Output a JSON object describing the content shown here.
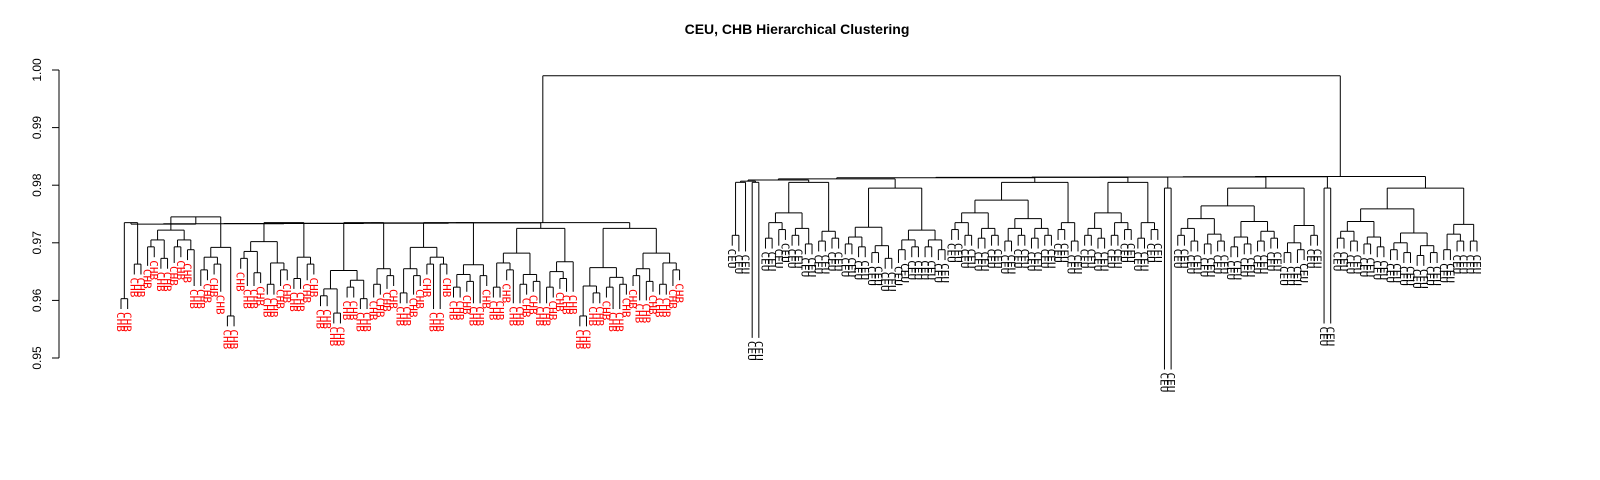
{
  "chart_data": {
    "type": "dendrogram",
    "title": "CEU, CHB Hierarchical Clustering",
    "ylabel": "",
    "xlabel": "",
    "ylim": [
      0.95,
      1.0
    ],
    "yticks": [
      "0.95",
      "0.96",
      "0.97",
      "0.98",
      "0.99",
      "1.00"
    ],
    "ytick_values": [
      0.95,
      0.96,
      0.97,
      0.98,
      0.99,
      1.0
    ],
    "grid": false,
    "root_height": 0.999,
    "groups": [
      {
        "name": "CHB",
        "color": "#ff0000",
        "leaf_count": 101,
        "merge_height": 0.9735,
        "subclusters": [
          {
            "merge_height": 0.9735,
            "leaf_heights": [
              0.9585,
              0.9585,
              0.9645,
              0.9645
            ]
          },
          {
            "merge_height": 0.9745,
            "leaf_heights": [
              0.966,
              0.9675,
              0.9655,
              0.9655,
              0.9665,
              0.9675,
              0.967,
              0.9625,
              0.9625,
              0.9635,
              0.9645,
              0.9615,
              0.9555,
              0.9555
            ]
          },
          {
            "merge_height": 0.9735,
            "leaf_heights": [
              0.9655,
              0.9625,
              0.9625,
              0.963,
              0.961,
              0.961,
              0.9625,
              0.9635,
              0.962,
              0.962,
              0.9635,
              0.9645
            ]
          },
          {
            "merge_height": 0.9735,
            "leaf_heights": [
              0.959,
              0.959,
              0.956,
              0.956,
              0.9605,
              0.9605,
              0.9585,
              0.9585,
              0.9605,
              0.961,
              0.962,
              0.9625
            ]
          },
          {
            "merge_height": 0.9735,
            "leaf_heights": [
              0.9595,
              0.9595,
              0.961,
              0.9625,
              0.9645,
              0.9585,
              0.9585,
              0.9645,
              0.9605,
              0.9605,
              0.9615,
              0.9595,
              0.9595,
              0.9625
            ]
          },
          {
            "merge_height": 0.9725,
            "leaf_heights": [
              0.9605,
              0.9605,
              0.9635,
              0.9595,
              0.9595,
              0.961,
              0.9615,
              0.9595,
              0.9595,
              0.9605,
              0.962,
              0.9615,
              0.9615
            ]
          },
          {
            "merge_height": 0.9725,
            "leaf_heights": [
              0.9555,
              0.9555,
              0.9595,
              0.9595,
              0.9605,
              0.9585,
              0.9585,
              0.961,
              0.9625,
              0.96,
              0.96,
              0.9615,
              0.961,
              0.961,
              0.9625,
              0.9635
            ]
          }
        ]
      },
      {
        "name": "CEU",
        "color": "#000000",
        "leaf_count": 118,
        "merge_height": 0.9815,
        "subclusters": [
          {
            "merge_height": 0.9805,
            "leaf_heights": [
              0.9695,
              0.9685,
              0.9685
            ]
          },
          {
            "merge_height": 0.9805,
            "leaf_heights": [
              0.9535,
              0.9535
            ]
          },
          {
            "merge_height": 0.9805,
            "leaf_heights": [
              0.969,
              0.969,
              0.9695,
              0.9705,
              0.9695,
              0.9695,
              0.968,
              0.968,
              0.9685,
              0.9685,
              0.969,
              0.969
            ]
          },
          {
            "merge_height": 0.9795,
            "leaf_heights": [
              0.968,
              0.968,
              0.9675,
              0.9675,
              0.9665,
              0.9665,
              0.9655,
              0.9655,
              0.9665,
              0.967,
              0.9675,
              0.9675,
              0.9675,
              0.9675,
              0.967,
              0.967
            ]
          },
          {
            "merge_height": 0.9805,
            "leaf_heights": [
              0.9705,
              0.9705,
              0.9695,
              0.9695,
              0.969,
              0.969,
              0.9695,
              0.9695,
              0.9685,
              0.9685,
              0.9695,
              0.9695,
              0.969,
              0.969,
              0.9695,
              0.9695,
              0.9705,
              0.9705,
              0.9685,
              0.9685
            ]
          },
          {
            "merge_height": 0.9805,
            "leaf_heights": [
              0.9695,
              0.9695,
              0.969,
              0.969,
              0.9695,
              0.9695,
              0.9705,
              0.9705,
              0.969,
              0.969,
              0.9705,
              0.9705
            ]
          },
          {
            "merge_height": 0.9795,
            "leaf_heights": [
              0.948,
              0.948
            ]
          },
          {
            "merge_height": 0.9795,
            "leaf_heights": [
              0.9695,
              0.9695,
              0.9685,
              0.9685,
              0.968,
              0.968,
              0.9685,
              0.9685,
              0.9675,
              0.9675,
              0.968,
              0.968,
              0.9685,
              0.9685,
              0.969,
              0.969,
              0.9665,
              0.9665,
              0.9665,
              0.967,
              0.9695,
              0.9695
            ]
          },
          {
            "merge_height": 0.9795,
            "leaf_heights": [
              0.956,
              0.956
            ]
          },
          {
            "merge_height": 0.9795,
            "leaf_heights": [
              0.969,
              0.969,
              0.9685,
              0.9685,
              0.968,
              0.968,
              0.9675,
              0.9675,
              0.967,
              0.967,
              0.9665,
              0.9665,
              0.966,
              0.966,
              0.9665,
              0.9665,
              0.967,
              0.967,
              0.9685,
              0.9685,
              0.9685,
              0.9685
            ]
          }
        ]
      }
    ]
  }
}
